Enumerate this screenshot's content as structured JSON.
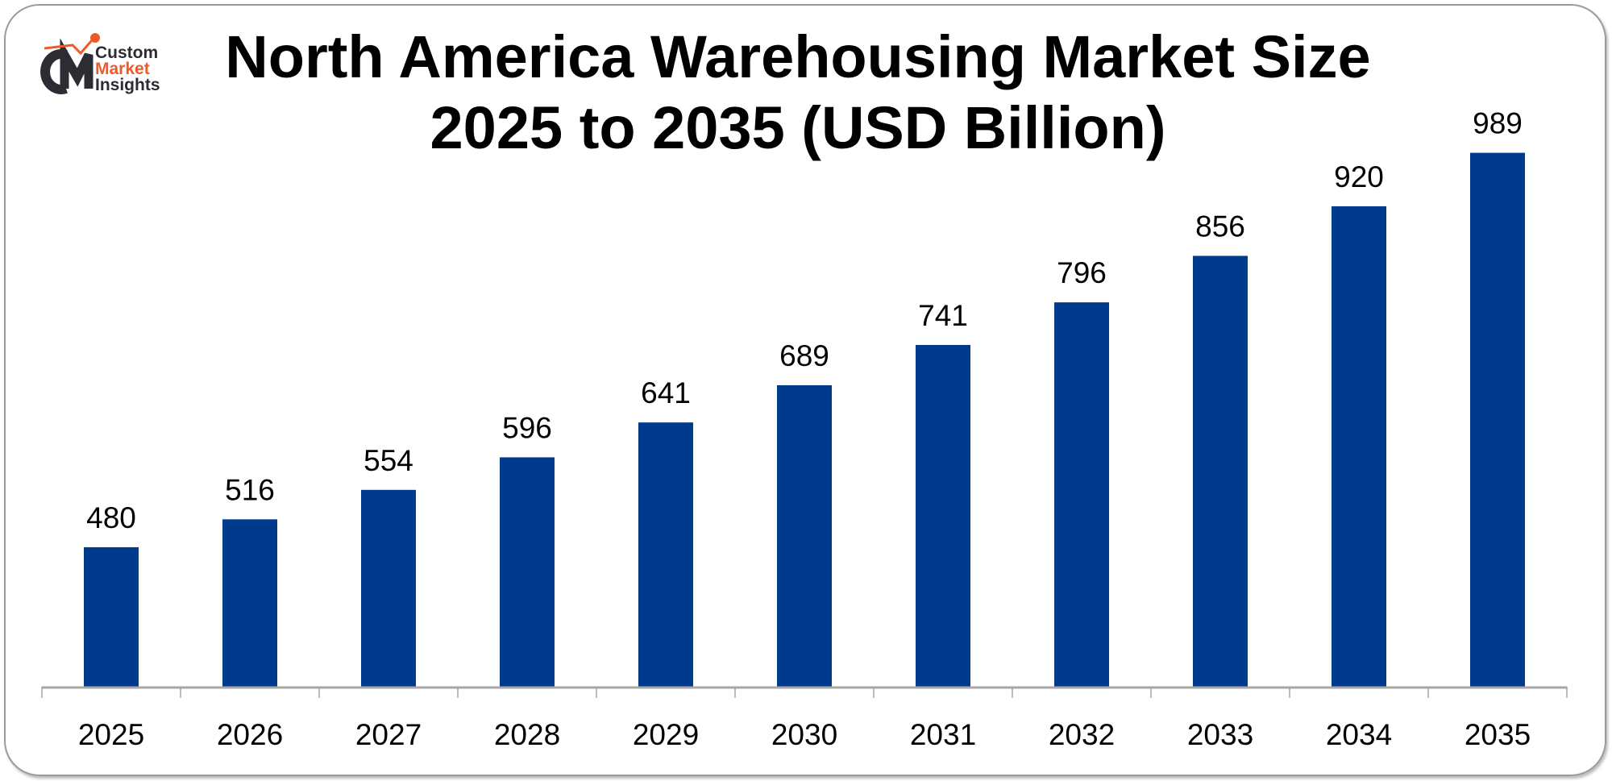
{
  "logo": {
    "line1": "Custom",
    "line2": "Market",
    "line3": "Insights",
    "mark": "CMI"
  },
  "chart_data": {
    "type": "bar",
    "title_line1": "North America Warehousing Market Size",
    "title_line2": "2025 to 2035 (USD Billion)",
    "categories": [
      "2025",
      "2026",
      "2027",
      "2028",
      "2029",
      "2030",
      "2031",
      "2032",
      "2033",
      "2034",
      "2035"
    ],
    "values": [
      480,
      516,
      554,
      596,
      641,
      689,
      741,
      796,
      856,
      920,
      989
    ],
    "xlabel": "",
    "ylabel": "",
    "ylim": [
      300,
      1000
    ],
    "grid": false,
    "legend": "none",
    "bar_color": "#003a8c",
    "data_labels": true
  }
}
